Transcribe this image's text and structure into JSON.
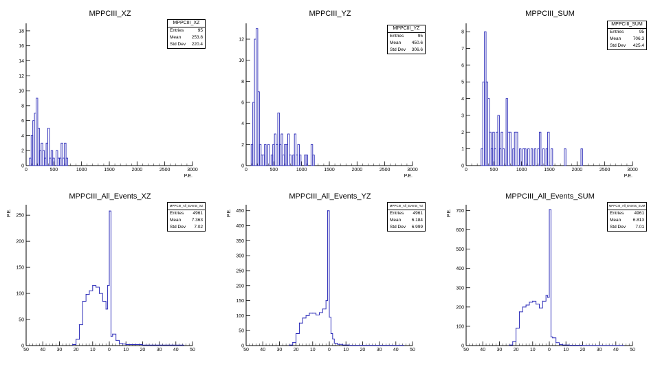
{
  "chart_data": [
    {
      "type": "bar",
      "title": "MPPCIII_XZ",
      "xlabel": "P.E.",
      "ylabel": "",
      "xlim": [
        0,
        3000
      ],
      "ylim": [
        0,
        19
      ],
      "xticks": [
        0,
        500,
        1000,
        1500,
        2000,
        2500,
        3000
      ],
      "yticks": [
        0,
        2,
        4,
        6,
        8,
        10,
        12,
        14,
        16,
        18
      ],
      "bin_width": 30,
      "bins": [
        [
          60,
          1
        ],
        [
          90,
          4
        ],
        [
          120,
          6
        ],
        [
          150,
          7
        ],
        [
          180,
          9
        ],
        [
          210,
          5
        ],
        [
          240,
          2
        ],
        [
          270,
          3
        ],
        [
          300,
          2
        ],
        [
          330,
          1
        ],
        [
          360,
          3
        ],
        [
          390,
          5
        ],
        [
          420,
          1
        ],
        [
          450,
          2
        ],
        [
          480,
          1
        ],
        [
          540,
          2
        ],
        [
          570,
          1
        ],
        [
          600,
          1
        ],
        [
          630,
          3
        ],
        [
          660,
          1
        ],
        [
          690,
          3
        ],
        [
          720,
          1
        ]
      ],
      "stats": {
        "name": "MPPCIII_XZ",
        "entries_label": "Entries",
        "entries": "95",
        "mean_label": "Mean",
        "mean": "253.8",
        "std_label": "Std Dev",
        "std": "220.4"
      }
    },
    {
      "type": "bar",
      "title": "MPPCIII_YZ",
      "xlabel": "P.E.",
      "ylabel": "",
      "xlim": [
        0,
        3000
      ],
      "ylim": [
        0,
        13.5
      ],
      "xticks": [
        0,
        500,
        1000,
        1500,
        2000,
        2500,
        3000
      ],
      "yticks": [
        0,
        2,
        4,
        6,
        8,
        10,
        12
      ],
      "bin_width": 30,
      "bins": [
        [
          90,
          2
        ],
        [
          120,
          6
        ],
        [
          150,
          12
        ],
        [
          180,
          13
        ],
        [
          210,
          7
        ],
        [
          240,
          2
        ],
        [
          270,
          1
        ],
        [
          300,
          1
        ],
        [
          330,
          2
        ],
        [
          390,
          2
        ],
        [
          450,
          1
        ],
        [
          480,
          2
        ],
        [
          510,
          3
        ],
        [
          540,
          2
        ],
        [
          570,
          5
        ],
        [
          600,
          2
        ],
        [
          630,
          3
        ],
        [
          660,
          1
        ],
        [
          690,
          2
        ],
        [
          720,
          2
        ],
        [
          750,
          3
        ],
        [
          780,
          1
        ],
        [
          840,
          1
        ],
        [
          870,
          3
        ],
        [
          900,
          1
        ],
        [
          930,
          2
        ],
        [
          960,
          1
        ],
        [
          1050,
          1
        ],
        [
          1080,
          1
        ],
        [
          1170,
          2
        ],
        [
          1200,
          1
        ]
      ],
      "stats": {
        "name": "MPPCIII_YZ",
        "entries_label": "Entries",
        "entries": "95",
        "mean_label": "Mean",
        "mean": "450.6",
        "std_label": "Std Dev",
        "std": "306.6"
      }
    },
    {
      "type": "bar",
      "title": "MPPCIII_SUM",
      "xlabel": "P.E.",
      "ylabel": "",
      "xlim": [
        0,
        3000
      ],
      "ylim": [
        0,
        8.5
      ],
      "xticks": [
        0,
        500,
        1000,
        1500,
        2000,
        2500,
        3000
      ],
      "yticks": [
        0,
        1,
        2,
        3,
        4,
        5,
        6,
        7,
        8
      ],
      "bin_width": 30,
      "bins": [
        [
          270,
          1
        ],
        [
          300,
          5
        ],
        [
          330,
          8
        ],
        [
          360,
          5
        ],
        [
          390,
          4
        ],
        [
          420,
          2
        ],
        [
          450,
          1
        ],
        [
          480,
          2
        ],
        [
          510,
          1
        ],
        [
          540,
          2
        ],
        [
          570,
          3
        ],
        [
          600,
          1
        ],
        [
          630,
          2
        ],
        [
          660,
          1
        ],
        [
          720,
          4
        ],
        [
          750,
          2
        ],
        [
          780,
          2
        ],
        [
          840,
          1
        ],
        [
          870,
          2
        ],
        [
          900,
          2
        ],
        [
          960,
          1
        ],
        [
          1020,
          1
        ],
        [
          1050,
          1
        ],
        [
          1110,
          1
        ],
        [
          1170,
          1
        ],
        [
          1230,
          1
        ],
        [
          1290,
          1
        ],
        [
          1320,
          2
        ],
        [
          1380,
          1
        ],
        [
          1440,
          1
        ],
        [
          1470,
          2
        ],
        [
          1530,
          1
        ],
        [
          1770,
          1
        ],
        [
          2070,
          1
        ]
      ],
      "stats": {
        "name": "MPPCIII_SUM",
        "entries_label": "Entries",
        "entries": "95",
        "mean_label": "Mean",
        "mean": "706.3",
        "std_label": "Std Dev",
        "std": "425.4"
      }
    },
    {
      "type": "line",
      "title": "MPPCIII_All_Events_XZ",
      "xlabel": "",
      "ylabel": "P.E.",
      "xlim": [
        -50,
        50
      ],
      "ylim": [
        0,
        270
      ],
      "xticks": [
        -50,
        -40,
        -30,
        -20,
        -10,
        0,
        10,
        20,
        30,
        40,
        50
      ],
      "xtick_labels": [
        "50",
        "40",
        "30",
        "20",
        "10",
        "0",
        "10",
        "20",
        "30",
        "40",
        "50"
      ],
      "yticks": [
        0,
        50,
        100,
        150,
        200,
        250
      ],
      "x": [
        -22,
        -20,
        -18,
        -16,
        -14,
        -12,
        -10,
        -8,
        -6,
        -4,
        -2,
        -1,
        0,
        1,
        2,
        4,
        6,
        8,
        10,
        15,
        20,
        30
      ],
      "y": [
        2,
        12,
        40,
        85,
        98,
        105,
        115,
        112,
        100,
        85,
        70,
        115,
        258,
        18,
        22,
        10,
        4,
        3,
        2,
        2,
        1,
        1
      ],
      "stats": {
        "name": "MPPCIII_All_Events_XZ",
        "entries_label": "Entries",
        "entries": "4961",
        "mean_label": "Mean",
        "mean": "7.363",
        "std_label": "Std Dev",
        "std": "7.02"
      }
    },
    {
      "type": "line",
      "title": "MPPCIII_All_Events_YZ",
      "xlabel": "",
      "ylabel": "P.E.",
      "xlim": [
        -50,
        50
      ],
      "ylim": [
        0,
        470
      ],
      "xticks": [
        -50,
        -40,
        -30,
        -20,
        -10,
        0,
        10,
        20,
        30,
        40,
        50
      ],
      "xtick_labels": [
        "50",
        "40",
        "30",
        "20",
        "10",
        "0",
        "10",
        "20",
        "30",
        "40",
        "50"
      ],
      "yticks": [
        0,
        50,
        100,
        150,
        200,
        250,
        300,
        350,
        400,
        450
      ],
      "x": [
        -24,
        -22,
        -20,
        -18,
        -16,
        -14,
        -12,
        -10,
        -8,
        -6,
        -4,
        -2,
        -1,
        0,
        1,
        2,
        3,
        5,
        8,
        12,
        20,
        30
      ],
      "y": [
        2,
        10,
        40,
        75,
        92,
        100,
        108,
        108,
        102,
        110,
        122,
        150,
        450,
        95,
        40,
        22,
        8,
        4,
        2,
        1,
        1,
        1
      ],
      "stats": {
        "name": "MPPCIII_All_Events_YZ",
        "entries_label": "Entries",
        "entries": "4961",
        "mean_label": "Mean",
        "mean": "6.184",
        "std_label": "Std Dev",
        "std": "6.999"
      }
    },
    {
      "type": "line",
      "title": "MPPCIII_All_Events_SUM",
      "xlabel": "",
      "ylabel": "P.E.",
      "xlim": [
        -50,
        50
      ],
      "ylim": [
        0,
        730
      ],
      "xticks": [
        -50,
        -40,
        -30,
        -20,
        -10,
        0,
        10,
        20,
        30,
        40,
        50
      ],
      "xtick_labels": [
        "50",
        "40",
        "30",
        "20",
        "10",
        "0",
        "10",
        "20",
        "30",
        "40",
        "50"
      ],
      "yticks": [
        0,
        100,
        200,
        300,
        400,
        500,
        600,
        700
      ],
      "x": [
        -24,
        -22,
        -20,
        -18,
        -16,
        -14,
        -12,
        -10,
        -8,
        -6,
        -4,
        -2,
        -1,
        0,
        1,
        2,
        4,
        6,
        8,
        12,
        20,
        30
      ],
      "y": [
        3,
        20,
        90,
        175,
        200,
        210,
        225,
        230,
        215,
        195,
        230,
        260,
        250,
        705,
        45,
        40,
        15,
        6,
        3,
        2,
        1,
        1
      ],
      "stats": {
        "name": "MPPCIII_All_Events_SUM",
        "entries_label": "Entries",
        "entries": "4961",
        "mean_label": "Mean",
        "mean": "6.813",
        "std_label": "Std Dev",
        "std": "7.01"
      }
    }
  ],
  "colors": {
    "line": "#2b2bb8",
    "axis": "#000000",
    "frame": "#000000"
  }
}
